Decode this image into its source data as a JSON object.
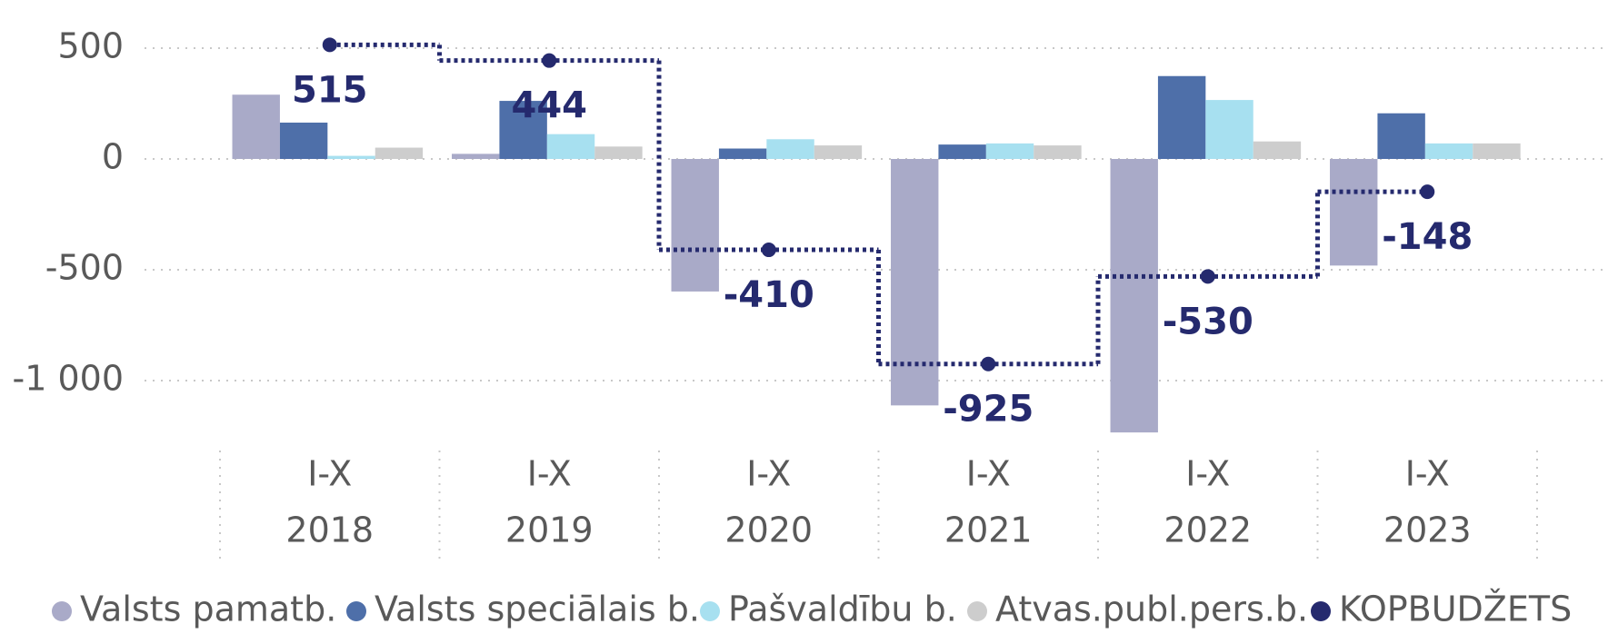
{
  "chart_data": {
    "type": "bar",
    "categories": [
      [
        "I-X",
        "2018"
      ],
      [
        "I-X",
        "2019"
      ],
      [
        "I-X",
        "2020"
      ],
      [
        "I-X",
        "2021"
      ],
      [
        "I-X",
        "2022"
      ],
      [
        "I-X",
        "2023"
      ]
    ],
    "series": [
      {
        "name": "Valsts pamatb.",
        "color": "#a9aac8",
        "type": "bar",
        "values": [
          290,
          23,
          -598,
          -1112,
          -1234,
          -481
        ]
      },
      {
        "name": "Valsts speciālais b.",
        "color": "#4e6fa9",
        "type": "bar",
        "values": [
          164,
          262,
          47,
          65,
          374,
          206
        ]
      },
      {
        "name": "Pašvaldību b.",
        "color": "#a7e0f0",
        "type": "bar",
        "values": [
          14,
          112,
          89,
          70,
          266,
          70
        ]
      },
      {
        "name": "Atvas.publ.pers.b.",
        "color": "#cdcdcd",
        "type": "bar",
        "values": [
          51,
          56,
          61,
          61,
          79,
          70
        ]
      },
      {
        "name": "KOPBUDŽETS",
        "color": "#252a6e",
        "type": "step",
        "values": [
          515,
          444,
          -410,
          -925,
          -530,
          -148
        ]
      }
    ],
    "ylim": [
      -1300,
      600
    ],
    "yticks": [
      500,
      0,
      -500,
      {
        "value": -1000,
        "label": "-1 000"
      }
    ],
    "grid": true,
    "legend": "bottom"
  }
}
